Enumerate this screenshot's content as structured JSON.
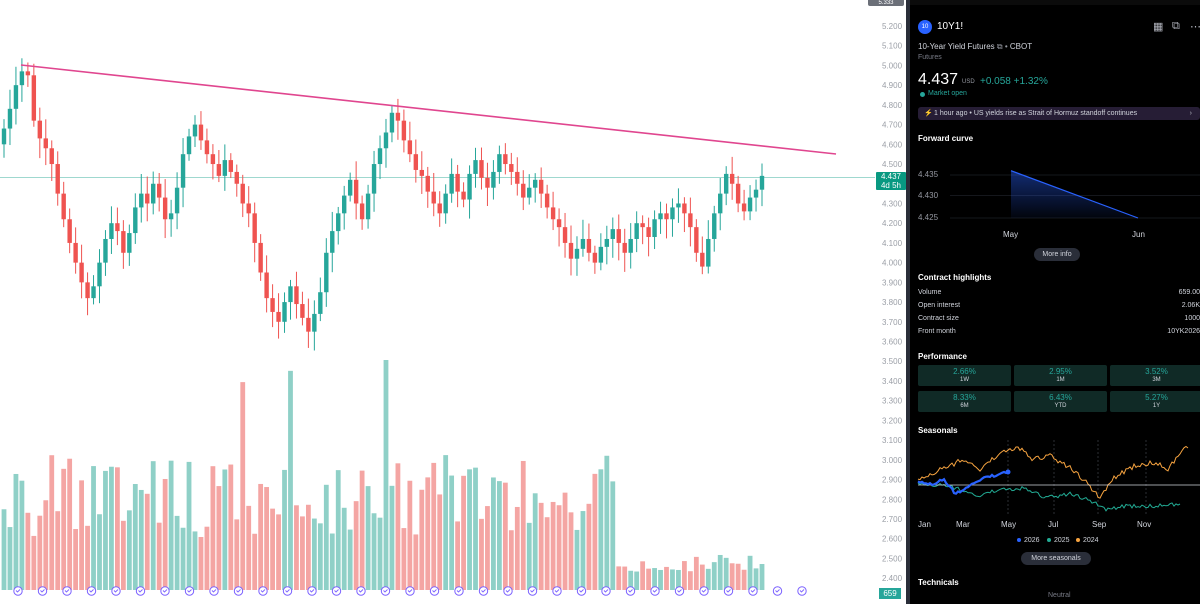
{
  "price_axis": [
    "5.200",
    "5.100",
    "5.000",
    "4.900",
    "4.800",
    "4.700",
    "4.600",
    "4.500",
    "4.400",
    "4.300",
    "4.200",
    "4.100",
    "4.000",
    "3.900",
    "3.800",
    "3.700",
    "3.600",
    "3.500",
    "3.400",
    "3.300",
    "3.200",
    "3.100",
    "3.000",
    "2.900",
    "2.800",
    "2.700",
    "2.600",
    "2.500",
    "2.400"
  ],
  "price_tag": {
    "price": "4.437",
    "countdown": "4d 5h"
  },
  "volume_tag": "659",
  "top_chip": "5.333",
  "colors": {
    "up": "#26a69a",
    "down": "#ef5350",
    "up_volume": "#8fd0c7",
    "down_volume": "#f4a5a3",
    "trendline": "#e0468f"
  },
  "symbol": {
    "badge": "10",
    "name": "10Y1!",
    "description": "10-Year Yield Futures",
    "exchange": "CBOT",
    "type": "Futures",
    "price": "4.437",
    "currency": "USD",
    "change": "+0.058",
    "change_pct": "+1.32%",
    "market_status": "Market open",
    "news": "1 hour ago  •  US yields rise as Strait of Hormuz standoff continues"
  },
  "forward_curve": {
    "title": "Forward curve",
    "y_labels": [
      "4.435",
      "4.430",
      "4.425"
    ],
    "x_labels": [
      "May",
      "Jun"
    ],
    "points": [
      {
        "month": "May",
        "value": 4.436
      },
      {
        "month": "Jun",
        "value": 4.425
      }
    ],
    "button": "More info"
  },
  "contract": {
    "title": "Contract highlights",
    "rows": [
      {
        "label": "Volume",
        "value": "659.00"
      },
      {
        "label": "Open interest",
        "value": "2.06K"
      },
      {
        "label": "Contract size",
        "value": "1000"
      },
      {
        "label": "Front month",
        "value": "10YK2026"
      }
    ]
  },
  "performance": {
    "title": "Performance",
    "items": [
      {
        "value": "2.66%",
        "period": "1W"
      },
      {
        "value": "2.95%",
        "period": "1M"
      },
      {
        "value": "3.52%",
        "period": "3M"
      },
      {
        "value": "8.33%",
        "period": "6M"
      },
      {
        "value": "6.43%",
        "period": "YTD"
      },
      {
        "value": "5.27%",
        "period": "1Y"
      }
    ]
  },
  "seasonals": {
    "title": "Seasonals",
    "x_labels": [
      "Jan",
      "Mar",
      "May",
      "Jul",
      "Sep",
      "Nov"
    ],
    "legend": [
      {
        "name": "2026",
        "color": "#2962ff"
      },
      {
        "name": "2025",
        "color": "#22ab94"
      },
      {
        "name": "2024",
        "color": "#f7a440"
      }
    ],
    "button": "More seasonals"
  },
  "technicals": {
    "title": "Technicals",
    "rating": "Neutral"
  }
}
